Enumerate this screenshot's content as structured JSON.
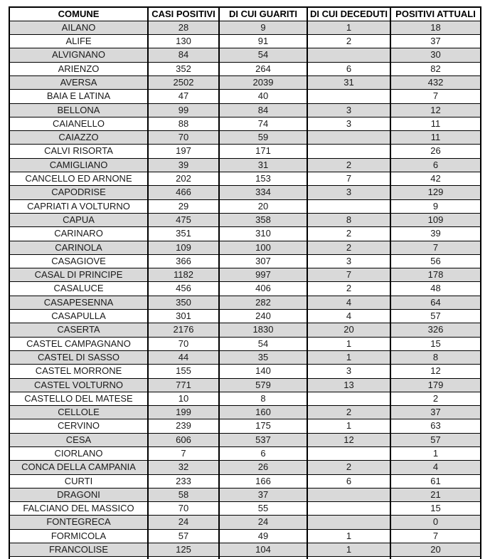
{
  "table": {
    "columns": [
      "COMUNE",
      "CASI POSITIVI",
      "DI CUI GUARITI",
      "DI CUI DECEDUTI",
      "POSITIVI ATTUALI"
    ],
    "rows": [
      [
        "AILANO",
        "28",
        "9",
        "1",
        "18"
      ],
      [
        "ALIFE",
        "130",
        "91",
        "2",
        "37"
      ],
      [
        "ALVIGNANO",
        "84",
        "54",
        "",
        "30"
      ],
      [
        "ARIENZO",
        "352",
        "264",
        "6",
        "82"
      ],
      [
        "AVERSA",
        "2502",
        "2039",
        "31",
        "432"
      ],
      [
        "BAIA E LATINA",
        "47",
        "40",
        "",
        "7"
      ],
      [
        "BELLONA",
        "99",
        "84",
        "3",
        "12"
      ],
      [
        "CAIANELLO",
        "88",
        "74",
        "3",
        "11"
      ],
      [
        "CAIAZZO",
        "70",
        "59",
        "",
        "11"
      ],
      [
        "CALVI RISORTA",
        "197",
        "171",
        "",
        "26"
      ],
      [
        "CAMIGLIANO",
        "39",
        "31",
        "2",
        "6"
      ],
      [
        "CANCELLO ED ARNONE",
        "202",
        "153",
        "7",
        "42"
      ],
      [
        "CAPODRISE",
        "466",
        "334",
        "3",
        "129"
      ],
      [
        "CAPRIATI A VOLTURNO",
        "29",
        "20",
        "",
        "9"
      ],
      [
        "CAPUA",
        "475",
        "358",
        "8",
        "109"
      ],
      [
        "CARINARO",
        "351",
        "310",
        "2",
        "39"
      ],
      [
        "CARINOLA",
        "109",
        "100",
        "2",
        "7"
      ],
      [
        "CASAGIOVE",
        "366",
        "307",
        "3",
        "56"
      ],
      [
        "CASAL DI PRINCIPE",
        "1182",
        "997",
        "7",
        "178"
      ],
      [
        "CASALUCE",
        "456",
        "406",
        "2",
        "48"
      ],
      [
        "CASAPESENNA",
        "350",
        "282",
        "4",
        "64"
      ],
      [
        "CASAPULLA",
        "301",
        "240",
        "4",
        "57"
      ],
      [
        "CASERTA",
        "2176",
        "1830",
        "20",
        "326"
      ],
      [
        "CASTEL CAMPAGNANO",
        "70",
        "54",
        "1",
        "15"
      ],
      [
        "CASTEL DI SASSO",
        "44",
        "35",
        "1",
        "8"
      ],
      [
        "CASTEL MORRONE",
        "155",
        "140",
        "3",
        "12"
      ],
      [
        "CASTEL VOLTURNO",
        "771",
        "579",
        "13",
        "179"
      ],
      [
        "CASTELLO DEL MATESE",
        "10",
        "8",
        "",
        "2"
      ],
      [
        "CELLOLE",
        "199",
        "160",
        "2",
        "37"
      ],
      [
        "CERVINO",
        "239",
        "175",
        "1",
        "63"
      ],
      [
        "CESA",
        "606",
        "537",
        "12",
        "57"
      ],
      [
        "CIORLANO",
        "7",
        "6",
        "",
        "1"
      ],
      [
        "CONCA DELLA CAMPANIA",
        "32",
        "26",
        "2",
        "4"
      ],
      [
        "CURTI",
        "233",
        "166",
        "6",
        "61"
      ],
      [
        "DRAGONI",
        "58",
        "37",
        "",
        "21"
      ],
      [
        "FALCIANO DEL MASSICO",
        "70",
        "55",
        "",
        "15"
      ],
      [
        "FONTEGRECA",
        "24",
        "24",
        "",
        "0"
      ],
      [
        "FORMICOLA",
        "57",
        "49",
        "1",
        "7"
      ],
      [
        "FRANCOLISE",
        "125",
        "104",
        "1",
        "20"
      ]
    ]
  },
  "colors": {
    "row_alternate": "#d9d9d9",
    "row_base": "#ffffff",
    "border": "#000000",
    "text": "#1a1a1a"
  }
}
